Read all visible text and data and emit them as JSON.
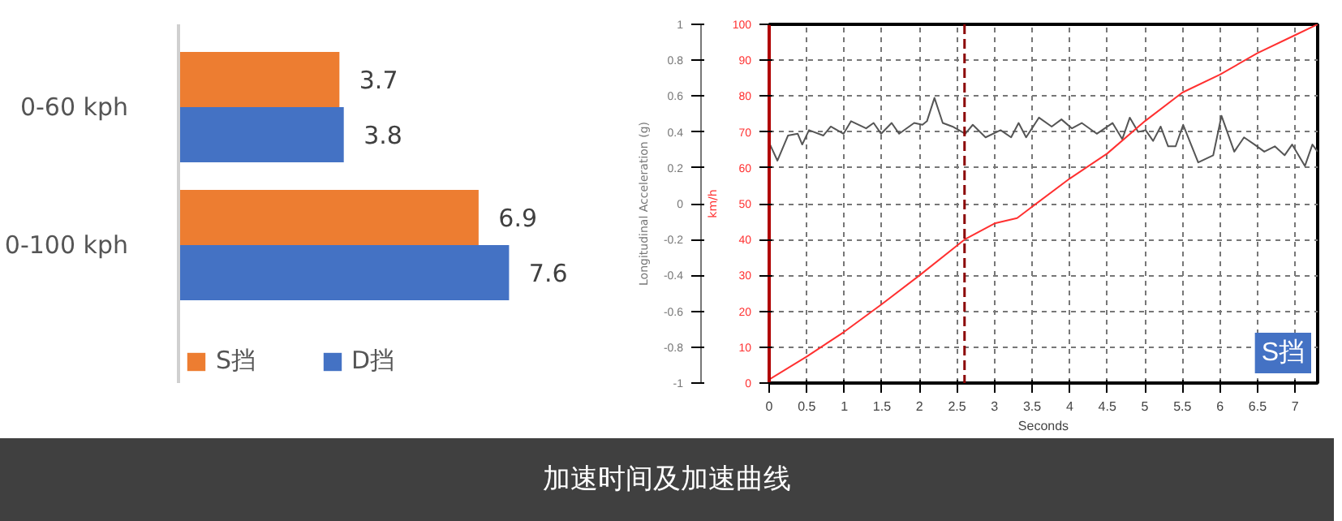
{
  "chart_data": [
    {
      "type": "bar",
      "orientation": "horizontal",
      "categories": [
        "0-60 kph",
        "0-100 kph"
      ],
      "series": [
        {
          "name": "S挡",
          "color": "#ed7d31",
          "values": [
            3.7,
            6.9
          ]
        },
        {
          "name": "D挡",
          "color": "#4472c4",
          "values": [
            3.8,
            7.6
          ]
        }
      ],
      "data_labels": true,
      "legend": "bottom left",
      "tick_labels": "y",
      "grid": false,
      "annotations": [
        "加速时间及加速曲线"
      ]
    },
    {
      "type": "line",
      "xlabel": "Seconds",
      "ylabel": "Longitudinal Acceleration (g)",
      "y2label": "km/h",
      "xlim": [
        0,
        7.3
      ],
      "xticks": [
        0,
        0.5,
        1,
        1.5,
        2,
        2.5,
        3,
        3.5,
        4,
        4.5,
        5,
        5.5,
        6,
        6.5,
        7
      ],
      "ylim": [
        -1,
        1
      ],
      "yticks": [
        -1,
        -0.8,
        -0.6,
        -0.4,
        -0.2,
        0,
        0.2,
        0.4,
        0.6,
        0.8,
        1
      ],
      "y2lim": [
        0,
        100
      ],
      "y2ticks": [
        0,
        10,
        20,
        30,
        40,
        50,
        60,
        70,
        80,
        90,
        100
      ],
      "grid": true,
      "legend": false,
      "line_style": "solid",
      "marker": "none",
      "series": [
        {
          "color": "#555555",
          "axis": "y",
          "x": [
            0,
            0.11,
            0.25,
            0.38,
            0.44,
            0.53,
            0.72,
            0.82,
            0.99,
            1.09,
            1.29,
            1.39,
            1.49,
            1.63,
            1.73,
            1.93,
            2.04,
            2.1,
            2.2,
            2.31,
            2.44,
            2.61,
            2.71,
            2.88,
            3.08,
            3.22,
            3.32,
            3.42,
            3.59,
            3.76,
            3.89,
            4.03,
            4.16,
            4.36,
            4.57,
            4.7,
            4.8,
            4.91,
            5.01,
            5.11,
            5.21,
            5.31,
            5.41,
            5.51,
            5.71,
            5.91,
            6.02,
            6.19,
            6.32,
            6.46,
            6.59,
            6.73,
            6.86,
            6.96,
            7.13,
            7.23,
            7.3
          ],
          "values": [
            0.34,
            0.24,
            0.38,
            0.39,
            0.33,
            0.41,
            0.38,
            0.43,
            0.39,
            0.46,
            0.42,
            0.45,
            0.39,
            0.45,
            0.39,
            0.45,
            0.44,
            0.46,
            0.59,
            0.45,
            0.43,
            0.39,
            0.44,
            0.37,
            0.41,
            0.37,
            0.45,
            0.37,
            0.48,
            0.43,
            0.47,
            0.42,
            0.45,
            0.39,
            0.45,
            0.36,
            0.48,
            0.4,
            0.41,
            0.35,
            0.43,
            0.32,
            0.32,
            0.44,
            0.23,
            0.27,
            0.49,
            0.29,
            0.37,
            0.33,
            0.29,
            0.32,
            0.27,
            0.33,
            0.21,
            0.33,
            0.29
          ]
        },
        {
          "color": "#ff3030",
          "axis": "y2",
          "x": [
            0,
            0.5,
            1,
            1.5,
            2,
            2.6,
            3,
            3.3,
            4,
            4.5,
            5,
            5.5,
            6,
            6.5,
            7,
            7.3
          ],
          "values": [
            1,
            7.4,
            14.3,
            22,
            30,
            40,
            44.5,
            46,
            57,
            64,
            73,
            81,
            86,
            92,
            97,
            100
          ]
        }
      ],
      "ref_lines": [
        {
          "axis": "x",
          "value": 2.6,
          "color": "#8b0000",
          "line_style": "dashed"
        }
      ],
      "annotations": [
        "S挡"
      ]
    }
  ]
}
